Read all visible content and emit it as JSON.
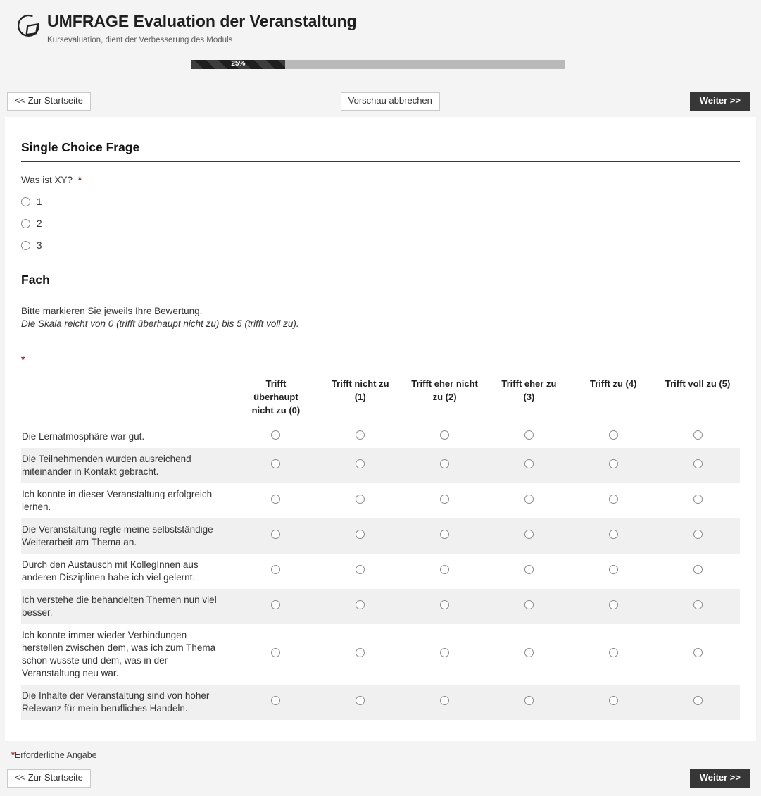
{
  "header": {
    "title": "UMFRAGE Evaluation der Veranstaltung",
    "subtitle": "Kursevaluation, dient der Verbesserung des Moduls"
  },
  "progress": {
    "percent": 25,
    "label": "25%"
  },
  "nav_top": {
    "back": "<< Zur Startseite",
    "cancel": "Vorschau abbrechen",
    "next": "Weiter >>"
  },
  "nav_bottom": {
    "back": "<< Zur Startseite",
    "next": "Weiter >>"
  },
  "single_choice": {
    "section_title": "Single Choice Frage",
    "question": "Was ist XY?",
    "required_mark": "*",
    "options": [
      "1",
      "2",
      "3"
    ]
  },
  "matrix": {
    "section_title": "Fach",
    "instruction": "Bitte markieren Sie jeweils Ihre Bewertung.",
    "scale_note": "Die Skala reicht von 0 (trifft überhaupt nicht zu) bis 5 (trifft voll zu).",
    "required_mark": "*",
    "columns": [
      "Trifft überhaupt nicht zu (0)",
      "Trifft nicht zu (1)",
      "Trifft eher nicht zu (2)",
      "Trifft eher zu (3)",
      "Trifft zu (4)",
      "Trifft voll zu (5)"
    ],
    "rows": [
      "Die Lernatmosphäre war gut.",
      "Die Teilnehmenden wurden ausreichend miteinander in Kontakt gebracht.",
      "Ich konnte in dieser Veranstaltung erfolgreich lernen.",
      "Die Veranstaltung regte meine selbstständige Weiterarbeit am Thema an.",
      "Durch den Austausch mit KollegInnen aus anderen Disziplinen habe ich viel gelernt.",
      "Ich verstehe die behandelten Themen nun viel besser.",
      "Ich konnte immer wieder Verbindungen herstellen zwischen dem, was ich zum Thema schon wusste und dem, was in der Veranstaltung neu war.",
      "Die Inhalte der Veranstaltung sind von hoher Relevanz für mein berufliches Handeln."
    ]
  },
  "footer": {
    "required_mark": "*",
    "required_note": "Erforderliche Angabe"
  },
  "colors": {
    "required_red": "#9e1c1c",
    "button_dark": "#373737",
    "progress_fill_dark": "#1f1f1f",
    "progress_track": "#b9b9b9",
    "row_alt_background": "#f0f0f0"
  }
}
